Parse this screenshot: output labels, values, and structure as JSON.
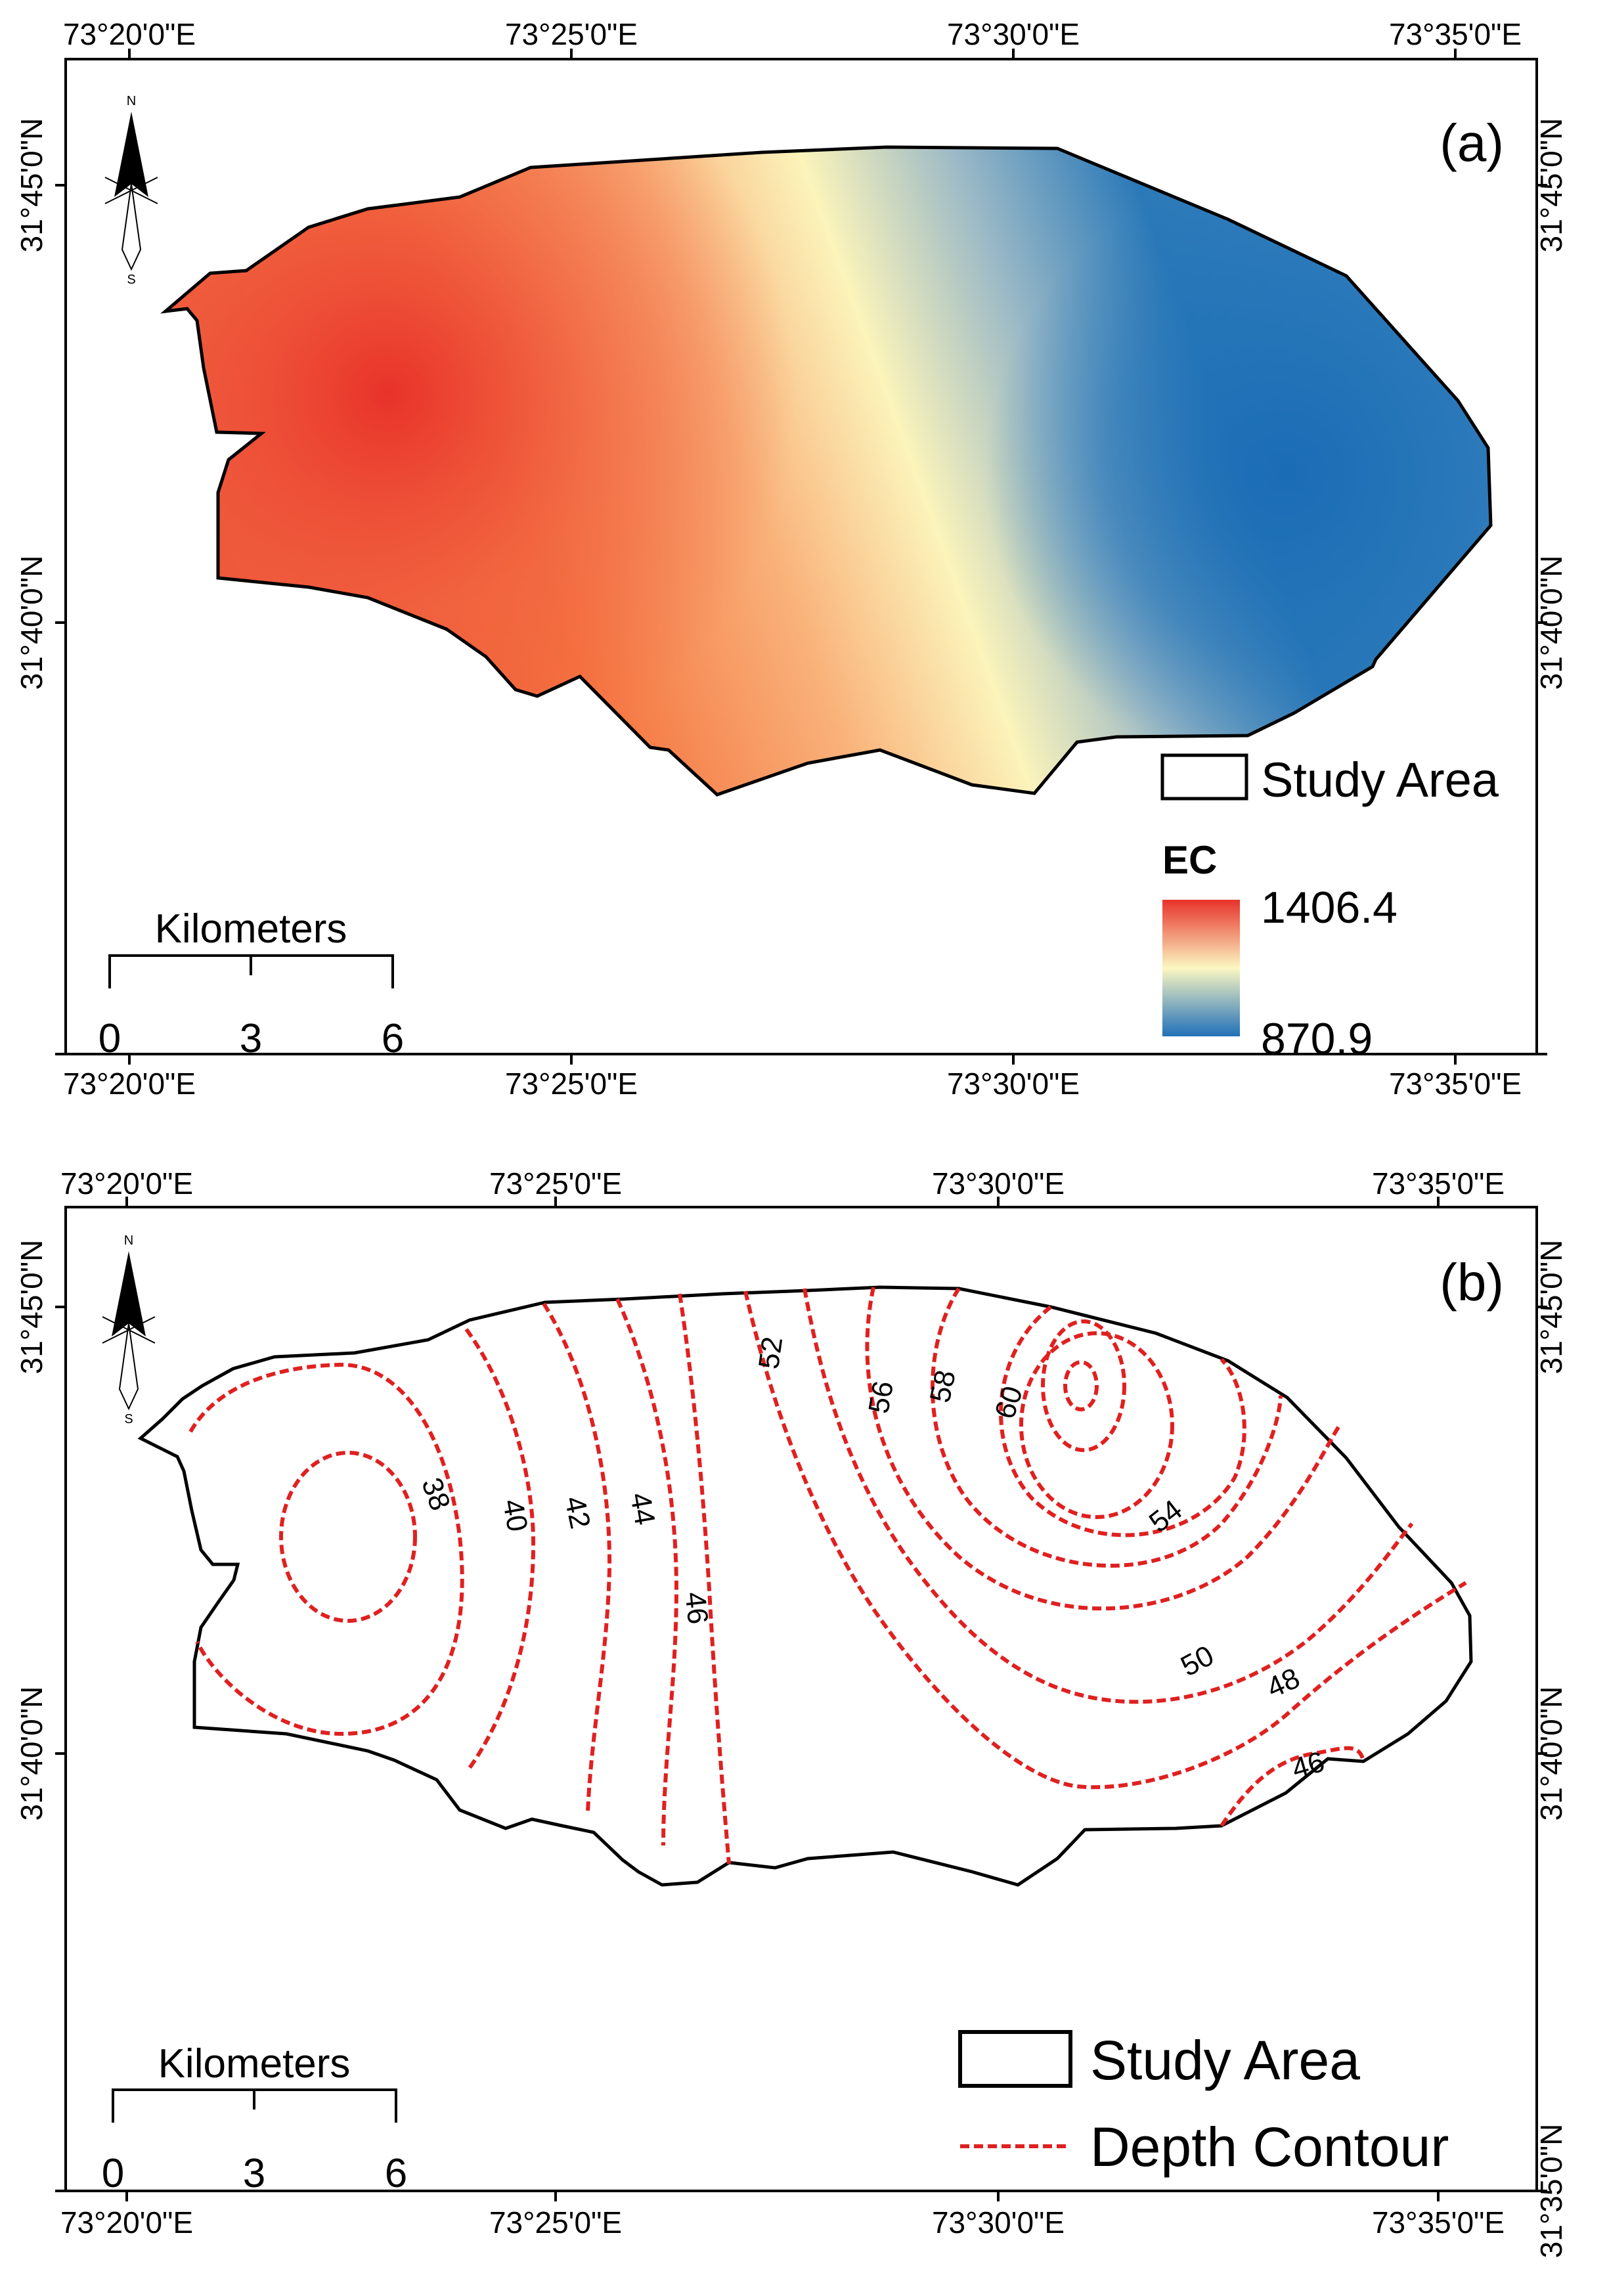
{
  "panel_a": {
    "label": "(a)",
    "top_ticks": [
      "73°20'0\"E",
      "73°25'0\"E",
      "73°30'0\"E",
      "73°35'0\"E"
    ],
    "bottom_ticks": [
      "73°20'0\"E",
      "73°25'0\"E",
      "73°30'0\"E",
      "73°35'0\"E"
    ],
    "left_ticks": [
      "31°45'0\"N",
      "31°40'0\"N"
    ],
    "right_ticks": [
      "31°45'0\"N",
      "31°40'0\"N"
    ],
    "north_arrow": {
      "n": "N",
      "s": "S",
      "icon": "north-arrow-icon"
    },
    "scale_bar": {
      "title": "Kilometers",
      "labels": [
        "0",
        "3",
        "6"
      ]
    },
    "legend": {
      "study_area": "Study Area",
      "ec_title": "EC",
      "ec_max": "1406.4",
      "ec_min": "870.9"
    },
    "colors": {
      "high": "#e8322a",
      "mid": "#fafac0",
      "low": "#2070b8"
    }
  },
  "panel_b": {
    "label": "(b)",
    "top_ticks": [
      "73°20'0\"E",
      "73°25'0\"E",
      "73°30'0\"E",
      "73°35'0\"E"
    ],
    "bottom_ticks": [
      "73°20'0\"E",
      "73°25'0\"E",
      "73°30'0\"E",
      "73°35'0\"E"
    ],
    "left_ticks": [
      "31°45'0\"N",
      "31°40'0\"N"
    ],
    "right_ticks": [
      "31°45'0\"N",
      "31°40'0\"N",
      "31°35'0\"N"
    ],
    "north_arrow": {
      "n": "N",
      "s": "S",
      "icon": "north-arrow-icon"
    },
    "scale_bar": {
      "title": "Kilometers",
      "labels": [
        "0",
        "3",
        "6"
      ]
    },
    "contour_labels": [
      "38",
      "40",
      "42",
      "44",
      "46",
      "52",
      "56",
      "58",
      "60",
      "54",
      "50",
      "48",
      "46"
    ],
    "legend": {
      "study_area": "Study Area",
      "depth_contour": "Depth Contour"
    },
    "colors": {
      "contour": "#e02020"
    }
  }
}
